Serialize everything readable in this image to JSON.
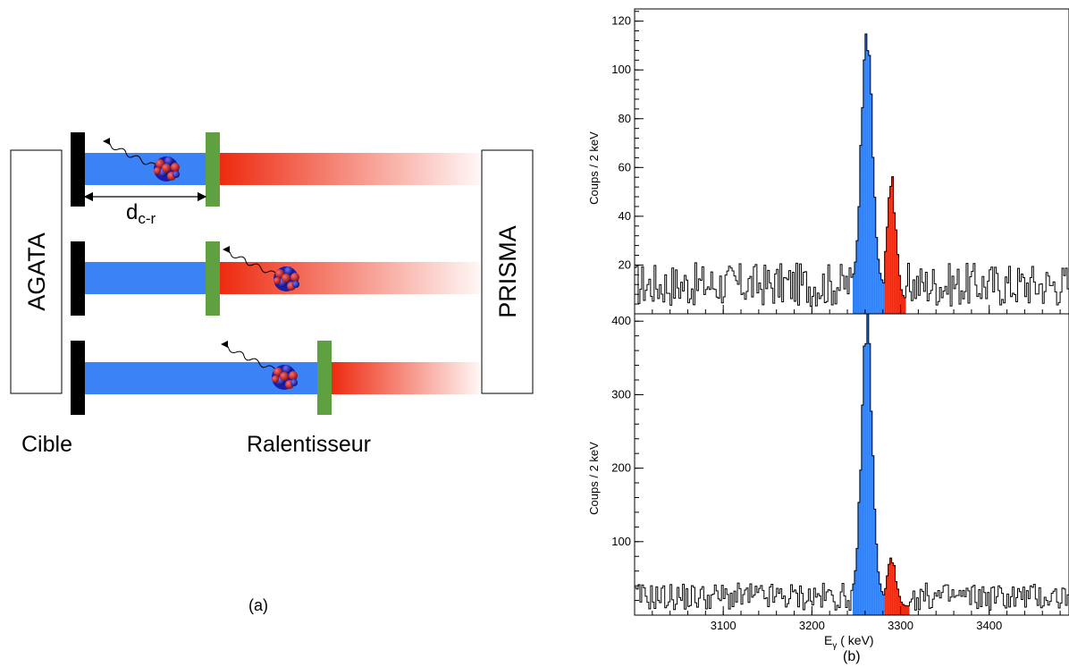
{
  "panel_a": {
    "label": "(a)",
    "left_box": "AGATA",
    "right_box": "PRISMA",
    "distance_main": "d",
    "distance_sub": "c-r",
    "target_label": "Cible",
    "degrader_label": "Ralentisseur"
  },
  "panel_b": {
    "label": "(b)"
  },
  "colors": {
    "unshifted": "#2f7ff5",
    "shifted": "#ee2a10",
    "target": "#000000",
    "degrader": "#5fa040",
    "ion_red": "#c0151b",
    "ion_blue": "#1b1ca8"
  },
  "chart_data": [
    {
      "type": "bar",
      "title": "",
      "xlabel": "",
      "ylabel": "Coups / 2 keV",
      "xlim": [
        3000,
        3490
      ],
      "ylim": [
        0,
        125
      ],
      "yticks": [
        20,
        40,
        60,
        80,
        100,
        120
      ],
      "xticks": [
        3100,
        3200,
        3300,
        3400
      ],
      "bin_width_keV": 2,
      "background_level": 12,
      "unshifted_peak": {
        "range": [
          3246,
          3282
        ],
        "center": 3262,
        "max": 113
      },
      "shifted_peak": {
        "range": [
          3282,
          3306
        ],
        "center": 3290,
        "max": 53
      },
      "grid": false
    },
    {
      "type": "bar",
      "title": "",
      "xlabel": "E",
      "xlabel_sub": "γ",
      "xlabel_unit": " ( keV)",
      "ylabel": "Coups / 2 keV",
      "xlim": [
        3000,
        3490
      ],
      "ylim": [
        0,
        410
      ],
      "yticks": [
        100,
        200,
        300,
        400
      ],
      "xticks": [
        3100,
        3200,
        3300,
        3400
      ],
      "xticklabels": [
        "3100",
        "3200",
        "3300",
        "3400"
      ],
      "bin_width_keV": 2,
      "background_level": 25,
      "unshifted_peak": {
        "range": [
          3246,
          3282
        ],
        "center": 3262,
        "max": 400
      },
      "shifted_peak": {
        "range": [
          3282,
          3310
        ],
        "center": 3290,
        "max": 68
      },
      "grid": false
    }
  ]
}
